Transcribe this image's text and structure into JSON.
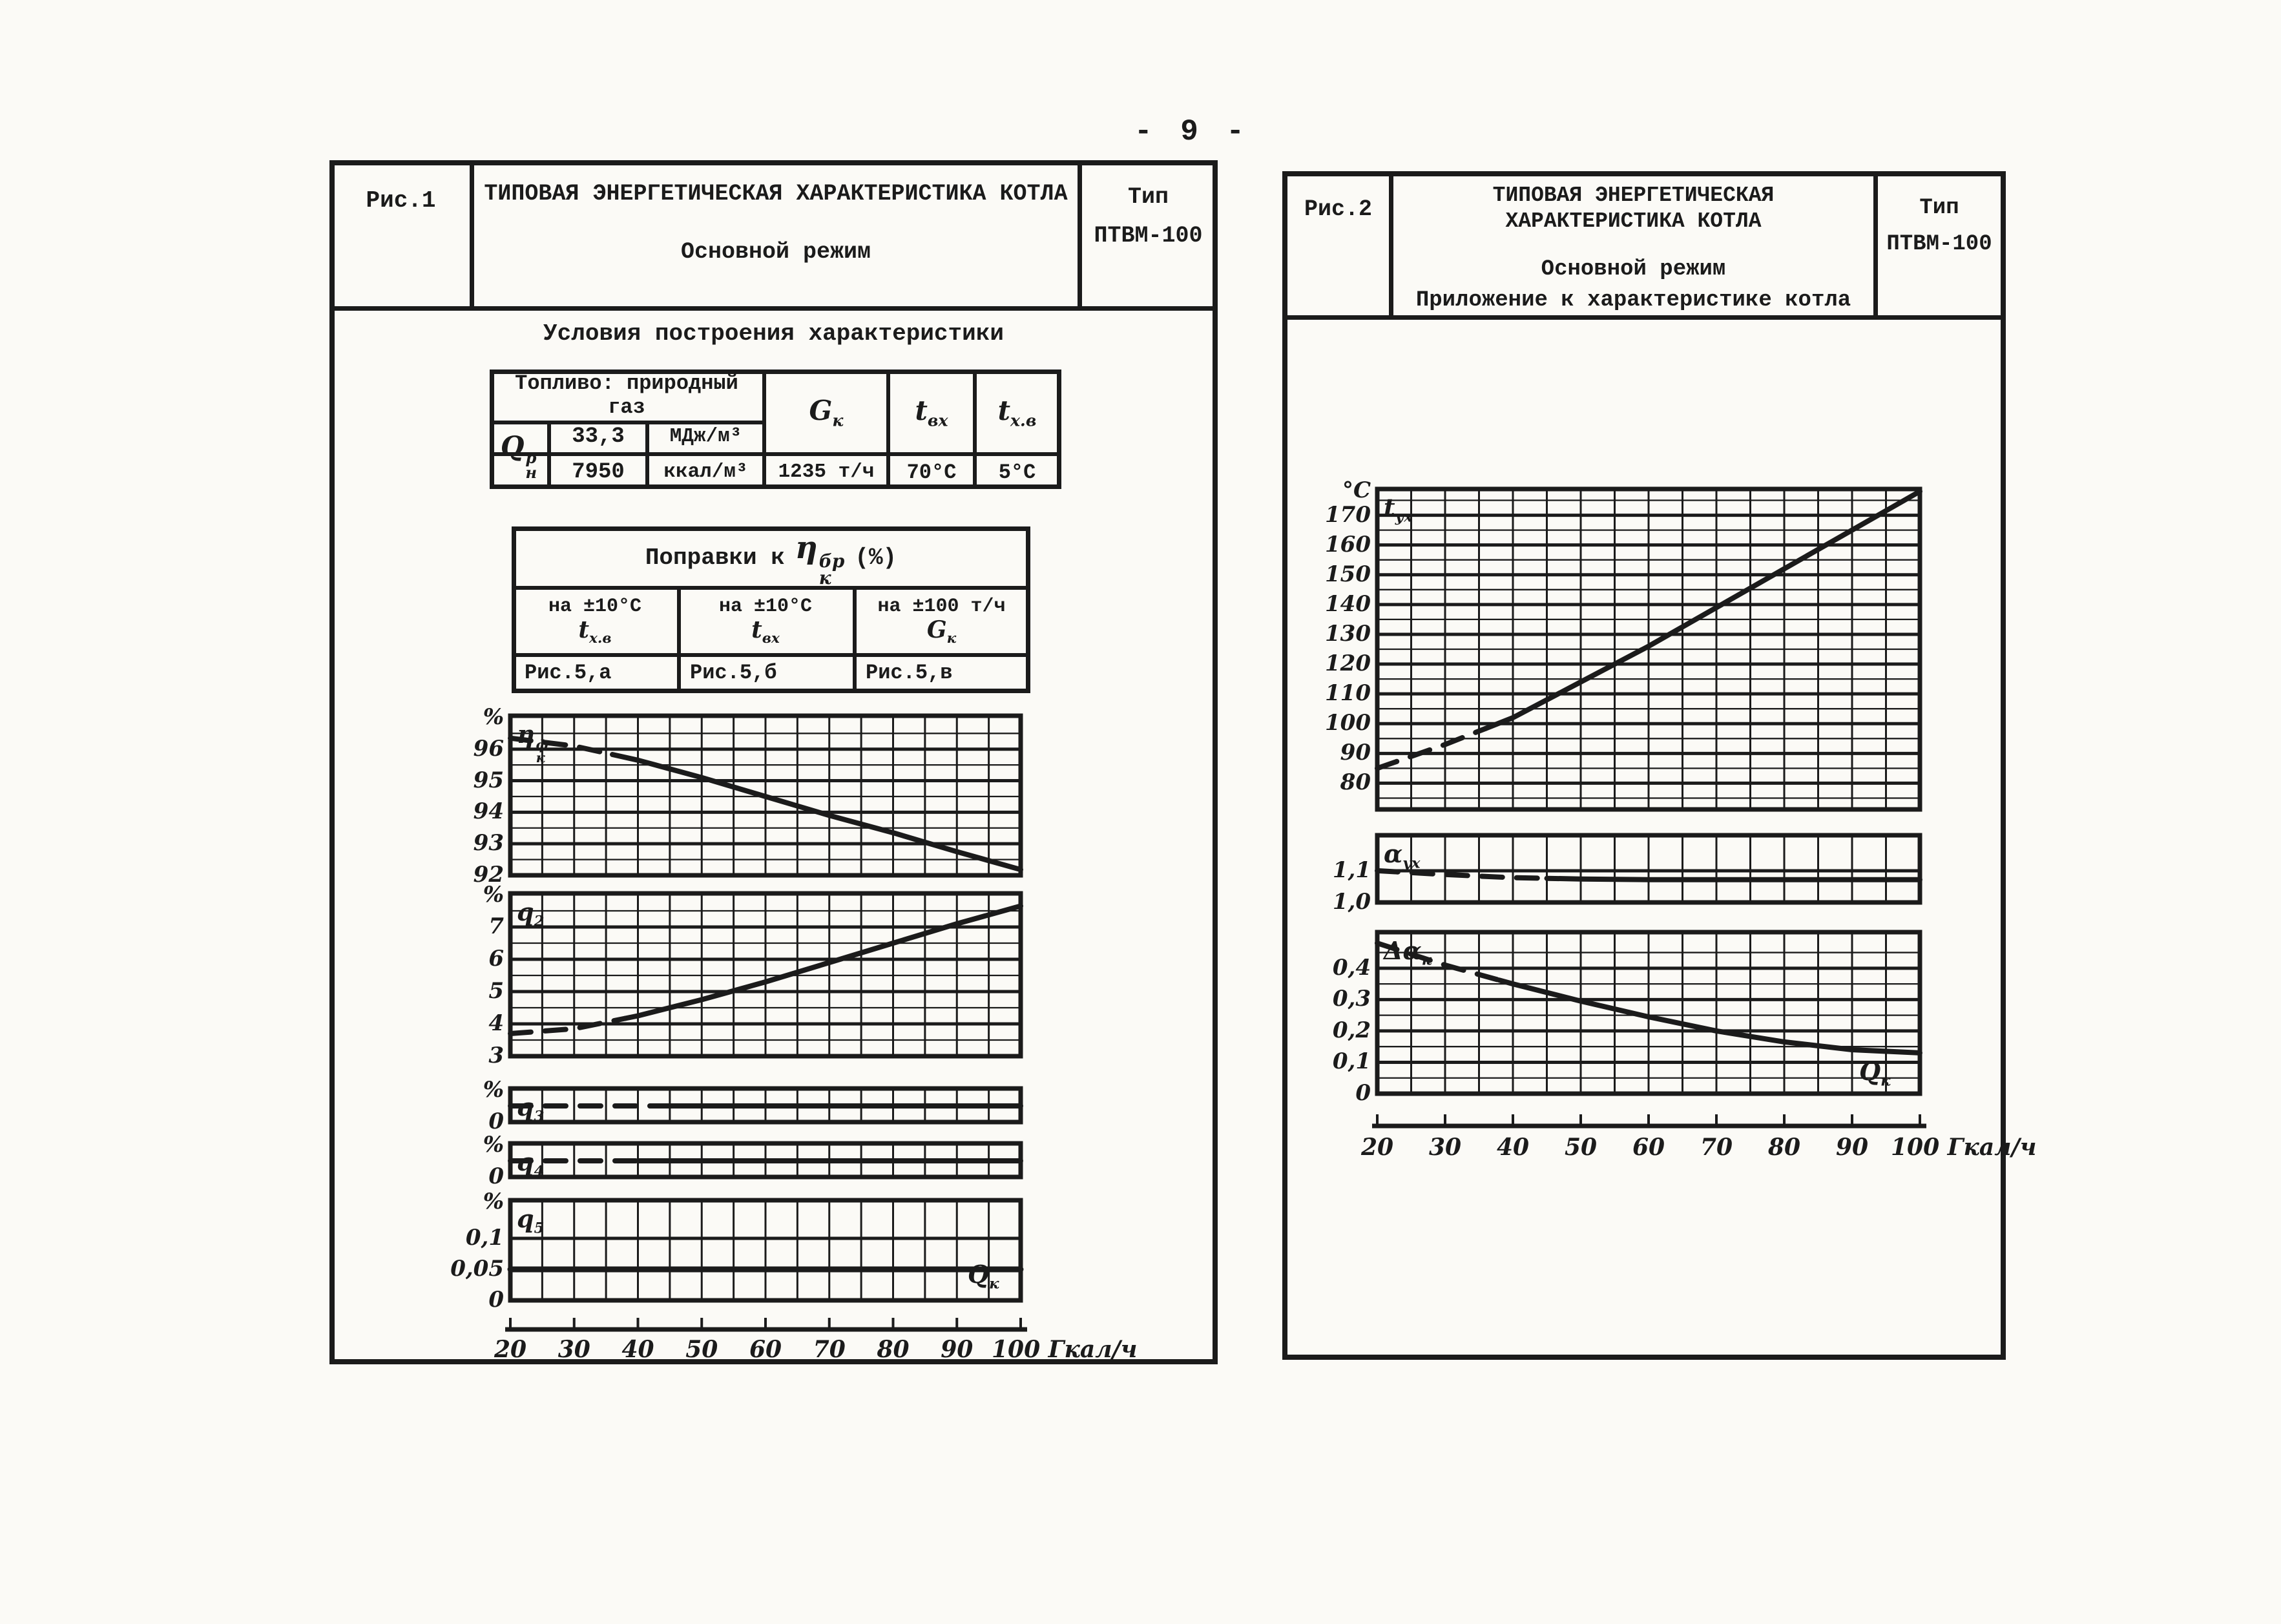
{
  "page": {
    "number_label": "- 9 -",
    "paper_color": "#fbfaf6",
    "ink_color": "#1b1b1b"
  },
  "fig1": {
    "fig_label": "Рис.1",
    "title_line1": "ТИПОВАЯ ЭНЕРГЕТИЧЕСКАЯ ХАРАКТЕРИСТИКА КОТЛА",
    "title_line2": "Основной режим",
    "type_line1": "Тип",
    "type_line2": "ПТВМ-100",
    "conditions_title": "Условия построения характеристики",
    "fuel_table": {
      "fuel_header_line1": "Топливо: природный",
      "fuel_header_line2": "газ",
      "q_base": "Q",
      "q_sup": "р",
      "q_sub": "н",
      "value_mj": "33,3",
      "unit_mj": "МДж/м³",
      "value_kcal": "7950",
      "unit_kcal": "ккал/м³",
      "g_base": "G",
      "g_sub": "к",
      "g_value": "1235 т/ч",
      "t_in_base": "t",
      "t_in_sub": "вх",
      "t_in_value": "70°С",
      "t_cold_base": "t",
      "t_cold_sub": "х.в",
      "t_cold_value": "5°С"
    },
    "corrections_table": {
      "title_prefix": "Поправки к",
      "eta_base": "η",
      "eta_sup": "бр",
      "eta_sub": "к",
      "title_suffix": "(%)",
      "columns": [
        {
          "condition": "на ±10°С",
          "sym_base": "t",
          "sym_sub": "х.в",
          "ref": "Рис.5,а"
        },
        {
          "condition": "на ±10°С",
          "sym_base": "t",
          "sym_sub": "вх",
          "ref": "Рис.5,б"
        },
        {
          "condition": "на ±100 т/ч",
          "sym_base": "G",
          "sym_sub": "к",
          "ref": "Рис.5,в"
        }
      ]
    }
  },
  "fig2": {
    "fig_label": "Рис.2",
    "title_line1": "ТИПОВАЯ ЭНЕРГЕТИЧЕСКАЯ",
    "title_line2": "ХАРАКТЕРИСТИКА КОТЛА",
    "title_line3": "Основной режим",
    "title_line4": "Приложение к характеристике котла",
    "type_line1": "Тип",
    "type_line2": "ПТВМ-100"
  },
  "chart_data": [
    {
      "figure": "Рис.1",
      "type": "line",
      "title": "Типовая энергетическая характеристика котла ПТВМ-100. Основной режим",
      "x": {
        "symbol_base": "Q",
        "symbol_sub": "к",
        "unit": "Гкал/ч",
        "range": [
          20,
          100
        ],
        "ticks": [
          20,
          30,
          40,
          50,
          60,
          70,
          80,
          90,
          100
        ],
        "tick_labels": [
          "20",
          "30",
          "40",
          "50",
          "60",
          "70",
          "80",
          "90",
          "100"
        ]
      },
      "panels": [
        {
          "id": "eta",
          "label": {
            "base": "η",
            "sub": "к",
            "sup": "ф"
          },
          "unit": "%",
          "y_range": [
            92,
            97.06
          ],
          "y_ticks": [
            {
              "v": 96,
              "t": "96"
            },
            {
              "v": 95,
              "t": "95"
            },
            {
              "v": 94,
              "t": "94"
            },
            {
              "v": 93,
              "t": "93"
            },
            {
              "v": 92,
              "t": "92"
            }
          ],
          "y_minor": [
            96.5,
            95.5,
            94.5,
            93.5,
            92.5
          ],
          "series": [
            {
              "name": "ηкф",
              "x": [
                20,
                30,
                40,
                50,
                60,
                70,
                80,
                90,
                100
              ],
              "y": [
                96.35,
                96.1,
                95.65,
                95.1,
                94.5,
                93.9,
                93.35,
                92.75,
                92.18
              ],
              "dash_until_x": 36,
              "width": 8
            }
          ]
        },
        {
          "id": "q2",
          "label": {
            "base": "q",
            "sub": "2"
          },
          "unit": "%",
          "y_range": [
            3,
            8.04
          ],
          "y_ticks": [
            {
              "v": 7,
              "t": "7"
            },
            {
              "v": 6,
              "t": "6"
            },
            {
              "v": 5,
              "t": "5"
            },
            {
              "v": 4,
              "t": "4"
            },
            {
              "v": 3,
              "t": "3"
            }
          ],
          "y_minor": [
            7.5,
            6.5,
            5.5,
            4.5,
            3.5
          ],
          "series": [
            {
              "name": "q2",
              "x": [
                20,
                30,
                40,
                50,
                60,
                70,
                80,
                90,
                100
              ],
              "y": [
                3.7,
                3.85,
                4.25,
                4.75,
                5.3,
                5.9,
                6.5,
                7.1,
                7.65
              ],
              "dash_until_x": 38,
              "width": 8
            }
          ]
        },
        {
          "id": "q3",
          "label": {
            "base": "q",
            "sub": "3"
          },
          "unit": "%",
          "y_axis_labeled": false,
          "y_range": [
            0,
            1
          ],
          "y_ticks": [
            {
              "v": 0,
              "t": "0"
            }
          ],
          "y_minor": [],
          "series": [
            {
              "name": "q3",
              "x": [
                20,
                100
              ],
              "y": [
                0.48,
                0.48
              ],
              "dash_until_x": 42,
              "width": 8
            }
          ]
        },
        {
          "id": "q4",
          "label": {
            "base": "q",
            "sub": "4"
          },
          "unit": "%",
          "y_axis_labeled": false,
          "y_range": [
            0,
            1
          ],
          "y_ticks": [
            {
              "v": 0,
              "t": "0"
            }
          ],
          "y_minor": [],
          "series": [
            {
              "name": "q4",
              "x": [
                20,
                100
              ],
              "y": [
                0.48,
                0.48
              ],
              "dash_until_x": 40,
              "width": 8
            }
          ]
        },
        {
          "id": "q5",
          "label": {
            "base": "q",
            "sub": "5"
          },
          "unit": "%",
          "y_range": [
            0,
            0.1615
          ],
          "y_ticks": [
            {
              "v": 0.1,
              "t": "0,1"
            },
            {
              "v": 0.05,
              "t": "0,05"
            },
            {
              "v": 0,
              "t": "0"
            }
          ],
          "y_minor": [],
          "series": [
            {
              "name": "q5",
              "x": [
                20,
                100
              ],
              "y": [
                0.05,
                0.05
              ],
              "dash_until_x": 20,
              "width": 9
            }
          ]
        }
      ]
    },
    {
      "figure": "Рис.2",
      "type": "line",
      "title": "Приложение к характеристике котла ПТВМ-100. Основной режим",
      "x": {
        "symbol_base": "Q",
        "symbol_sub": "к",
        "unit": "Гкал/ч",
        "range": [
          20,
          100
        ],
        "ticks": [
          20,
          30,
          40,
          50,
          60,
          70,
          80,
          90,
          100
        ],
        "tick_labels": [
          "20",
          "30",
          "40",
          "50",
          "60",
          "70",
          "80",
          "90",
          "100"
        ]
      },
      "panels": [
        {
          "id": "t_ux",
          "label": {
            "base": "t",
            "sub": "ух"
          },
          "unit": "°C",
          "y_range": [
            71.2,
            178.8
          ],
          "y_ticks": [
            {
              "v": 170,
              "t": "170"
            },
            {
              "v": 160,
              "t": "160"
            },
            {
              "v": 150,
              "t": "150"
            },
            {
              "v": 140,
              "t": "140"
            },
            {
              "v": 130,
              "t": "130"
            },
            {
              "v": 120,
              "t": "120"
            },
            {
              "v": 110,
              "t": "110"
            },
            {
              "v": 100,
              "t": "100"
            },
            {
              "v": 90,
              "t": "90"
            },
            {
              "v": 80,
              "t": "80"
            }
          ],
          "y_minor": [
            175,
            165,
            155,
            145,
            135,
            125,
            115,
            105,
            95,
            85,
            75
          ],
          "series": [
            {
              "name": "tух",
              "x": [
                20,
                30,
                40,
                50,
                60,
                70,
                80,
                90,
                100
              ],
              "y": [
                85,
                93,
                102,
                114,
                126,
                139,
                152,
                165,
                178
              ],
              "dash_until_x": 36,
              "width": 8
            }
          ]
        },
        {
          "id": "alpha_ux",
          "label": {
            "base": "α",
            "sub": "ух"
          },
          "unit": "",
          "y_range": [
            1.0,
            1.212
          ],
          "y_ticks": [
            {
              "v": 1.1,
              "t": "1,1"
            },
            {
              "v": 1.0,
              "t": "1,0"
            }
          ],
          "y_minor": [],
          "series": [
            {
              "name": "αух",
              "x": [
                20,
                30,
                40,
                50,
                60,
                70,
                80,
                90,
                100
              ],
              "y": [
                1.1,
                1.088,
                1.078,
                1.074,
                1.072,
                1.072,
                1.072,
                1.072,
                1.072
              ],
              "dash_until_x": 45,
              "width": 8
            }
          ]
        },
        {
          "id": "dalpha_k",
          "label": {
            "base": "Δα",
            "sub": "к"
          },
          "unit": "",
          "y_range": [
            0,
            0.515
          ],
          "y_ticks": [
            {
              "v": 0.4,
              "t": "0,4"
            },
            {
              "v": 0.3,
              "t": "0,3"
            },
            {
              "v": 0.2,
              "t": "0,2"
            },
            {
              "v": 0.1,
              "t": "0,1"
            },
            {
              "v": 0,
              "t": "0"
            }
          ],
          "y_minor": [
            0.45,
            0.35,
            0.25,
            0.15,
            0.05
          ],
          "series": [
            {
              "name": "Δαк",
              "x": [
                20,
                30,
                40,
                50,
                60,
                70,
                80,
                90,
                100
              ],
              "y": [
                0.48,
                0.41,
                0.35,
                0.295,
                0.245,
                0.2,
                0.165,
                0.14,
                0.13
              ],
              "dash_until_x": 38,
              "width": 8
            }
          ]
        }
      ]
    }
  ]
}
